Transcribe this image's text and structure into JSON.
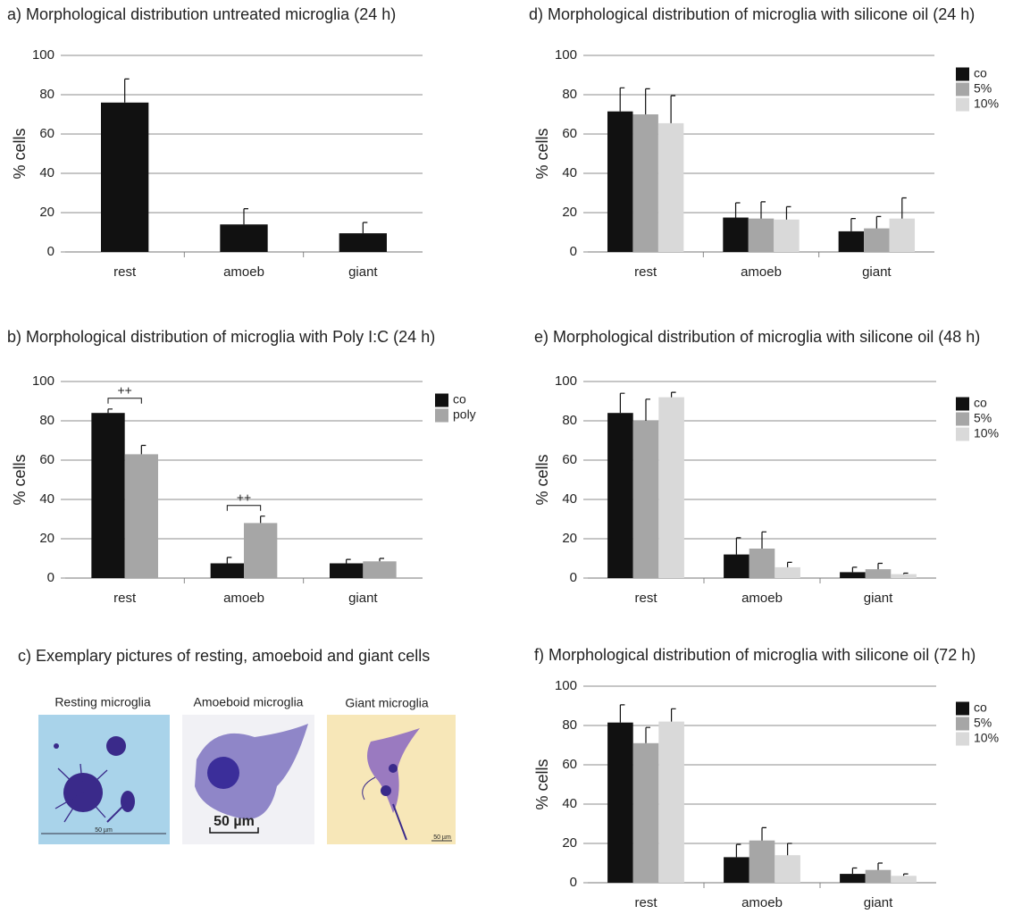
{
  "chart_data": [
    {
      "type": "bar",
      "title": "a) Morphological distribution untreated microglia (24 h)",
      "ylabel": "% cells",
      "categories": [
        "rest",
        "amoeb",
        "giant"
      ],
      "values": [
        76,
        14,
        9.5
      ],
      "errors": [
        12,
        8,
        5.5
      ],
      "color": "#111111",
      "ylim": [
        0,
        100
      ],
      "yticks": [
        0,
        20,
        40,
        60,
        80,
        100
      ],
      "grid": true
    },
    {
      "type": "bar",
      "title": "b) Morphological distribution of microglia with Poly I:C (24 h)",
      "ylabel": "% cells",
      "categories": [
        "rest",
        "amoeb",
        "giant"
      ],
      "series": [
        {
          "name": "co",
          "color": "#111111",
          "values": [
            84,
            7.5,
            7.5
          ],
          "errors": [
            2,
            3,
            2
          ]
        },
        {
          "name": "poly",
          "color": "#a6a6a6",
          "values": [
            63,
            28,
            8.5
          ],
          "errors": [
            4.5,
            3.5,
            1.5
          ]
        }
      ],
      "annotations": [
        "++",
        "++",
        null
      ],
      "ylim": [
        0,
        100
      ],
      "yticks": [
        0,
        20,
        40,
        60,
        80,
        100
      ],
      "grid": true,
      "legend": "right"
    },
    {
      "type": "bar",
      "title": "d) Morphological distribution of microglia with silicone oil (24 h)",
      "ylabel": "% cells",
      "categories": [
        "rest",
        "amoeb",
        "giant"
      ],
      "series": [
        {
          "name": "co",
          "color": "#111111",
          "values": [
            71.5,
            17.5,
            10.5
          ],
          "errors": [
            12,
            7.5,
            6.5
          ]
        },
        {
          "name": "5%",
          "color": "#a6a6a6",
          "values": [
            70,
            17,
            12
          ],
          "errors": [
            13,
            8.5,
            6
          ]
        },
        {
          "name": "10%",
          "color": "#d9d9d9",
          "values": [
            65.5,
            16.5,
            17
          ],
          "errors": [
            14,
            6.5,
            10.5
          ]
        }
      ],
      "ylim": [
        0,
        100
      ],
      "yticks": [
        0,
        20,
        40,
        60,
        80,
        100
      ],
      "grid": true,
      "legend": "right"
    },
    {
      "type": "bar",
      "title": "e) Morphological distribution of microglia with silicone oil (48 h)",
      "ylabel": "% cells",
      "categories": [
        "rest",
        "amoeb",
        "giant"
      ],
      "series": [
        {
          "name": "co",
          "color": "#111111",
          "values": [
            84,
            12,
            3
          ],
          "errors": [
            10,
            8.5,
            2.5
          ]
        },
        {
          "name": "5%",
          "color": "#a6a6a6",
          "values": [
            80,
            15,
            4.5
          ],
          "errors": [
            11,
            8.5,
            3
          ]
        },
        {
          "name": "10%",
          "color": "#d9d9d9",
          "values": [
            92,
            5.5,
            2
          ],
          "errors": [
            2.5,
            2.5,
            0.5
          ]
        }
      ],
      "ylim": [
        0,
        100
      ],
      "yticks": [
        0,
        20,
        40,
        60,
        80,
        100
      ],
      "grid": true,
      "legend": "right"
    },
    {
      "type": "bar",
      "title": "f) Morphological distribution of microglia with silicone oil (72 h)",
      "ylabel": "% cells",
      "categories": [
        "rest",
        "amoeb",
        "giant"
      ],
      "series": [
        {
          "name": "co",
          "color": "#111111",
          "values": [
            81.5,
            13,
            4.5
          ],
          "errors": [
            9,
            6.5,
            3
          ]
        },
        {
          "name": "5%",
          "color": "#a6a6a6",
          "values": [
            71,
            21.5,
            6.5
          ],
          "errors": [
            8,
            6.5,
            3.5
          ]
        },
        {
          "name": "10%",
          "color": "#d9d9d9",
          "values": [
            82,
            14,
            3.5
          ],
          "errors": [
            6.5,
            6,
            1
          ]
        }
      ],
      "ylim": [
        0,
        100
      ],
      "yticks": [
        0,
        20,
        40,
        60,
        80,
        100
      ],
      "grid": true,
      "legend": "right"
    }
  ],
  "images_panel": {
    "title": "c) Exemplary pictures of resting, amoeboid and giant cells",
    "images": [
      {
        "label": "Resting microglia",
        "scale": "50 µm"
      },
      {
        "label": "Amoeboid microglia",
        "scale": "50 µm"
      },
      {
        "label": "Giant microglia",
        "scale": "50 µm"
      }
    ]
  }
}
